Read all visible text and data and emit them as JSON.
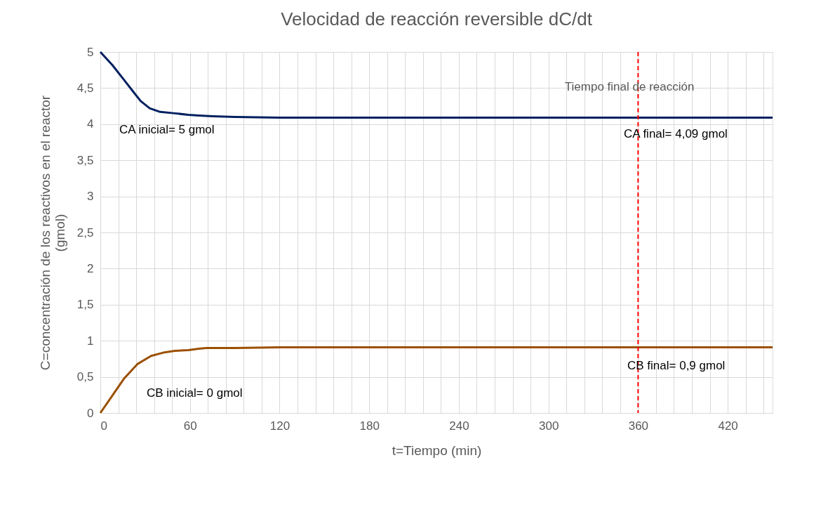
{
  "chart_data": {
    "type": "line",
    "title": "Velocidad de reacción reversible dC/dt",
    "xlabel": "t=Tiempo (min)",
    "ylabel": "C=concentración de los reactivos en el reactor\n(gmol)",
    "series": [
      {
        "color": "#002060",
        "x": [
          0,
          8,
          16,
          22,
          27,
          33,
          40,
          50,
          59,
          66,
          75,
          90,
          120,
          180,
          240,
          300,
          360,
          420,
          450
        ],
        "values": [
          5,
          4.82,
          4.61,
          4.45,
          4.32,
          4.22,
          4.17,
          4.15,
          4.13,
          4.12,
          4.11,
          4.1,
          4.09,
          4.09,
          4.09,
          4.09,
          4.09,
          4.09,
          4.09
        ]
      },
      {
        "color": "#9c5000",
        "x": [
          0,
          8,
          16,
          25,
          34,
          43,
          50,
          59,
          66,
          71,
          90,
          120,
          180,
          240,
          300,
          360,
          420,
          450
        ],
        "values": [
          0,
          0.24,
          0.48,
          0.68,
          0.79,
          0.84,
          0.86,
          0.87,
          0.89,
          0.9,
          0.9,
          0.91,
          0.91,
          0.91,
          0.91,
          0.91,
          0.91,
          0.91
        ]
      }
    ],
    "xlim": [
      0,
      450
    ],
    "xticks": [
      0,
      {
        "value": 12,
        "label": null
      },
      {
        "value": 24,
        "label": null
      },
      {
        "value": 36,
        "label": null
      },
      {
        "value": 48,
        "label": null
      },
      60,
      {
        "value": 72,
        "label": null
      },
      {
        "value": 84,
        "label": null
      },
      {
        "value": 96,
        "label": null
      },
      {
        "value": 108,
        "label": null
      },
      120,
      {
        "value": 132,
        "label": null
      },
      {
        "value": 144,
        "label": null
      },
      {
        "value": 156,
        "label": null
      },
      {
        "value": 168,
        "label": null
      },
      180,
      {
        "value": 192,
        "label": null
      },
      {
        "value": 204,
        "label": null
      },
      {
        "value": 216,
        "label": null
      },
      {
        "value": 228,
        "label": null
      },
      240,
      {
        "value": 252,
        "label": null
      },
      {
        "value": 264,
        "label": null
      },
      {
        "value": 276,
        "label": null
      },
      {
        "value": 288,
        "label": null
      },
      300,
      {
        "value": 312,
        "label": null
      },
      {
        "value": 324,
        "label": null
      },
      {
        "value": 336,
        "label": null
      },
      {
        "value": 348,
        "label": null
      },
      360,
      {
        "value": 372,
        "label": null
      },
      {
        "value": 384,
        "label": null
      },
      {
        "value": 396,
        "label": null
      },
      {
        "value": 408,
        "label": null
      },
      420,
      {
        "value": 432,
        "label": null
      },
      {
        "value": 444,
        "label": null
      }
    ],
    "ylim": [
      0,
      5
    ],
    "yticks": [
      0,
      {
        "value": 0.5,
        "label": "0,5"
      },
      1,
      {
        "value": 1.5,
        "label": "1,5"
      },
      2,
      {
        "value": 2.5,
        "label": "2,5"
      },
      3,
      {
        "value": 3.5,
        "label": "3,5"
      },
      4,
      {
        "value": 4.5,
        "label": "4,5"
      },
      5
    ],
    "grid": true,
    "marker": "none",
    "line_style": "solid",
    "ref_lines": [
      {
        "axis": "x",
        "value": 360,
        "label": "Tiempo final de reacción",
        "color": "#ff0000",
        "line_style": "dashed"
      }
    ],
    "annotations": [
      "CA inicial= 5 gmol",
      "CB inicial= 0 gmol",
      "CA final= 4,09 gmol",
      "CB final= 0,9 gmol"
    ]
  }
}
